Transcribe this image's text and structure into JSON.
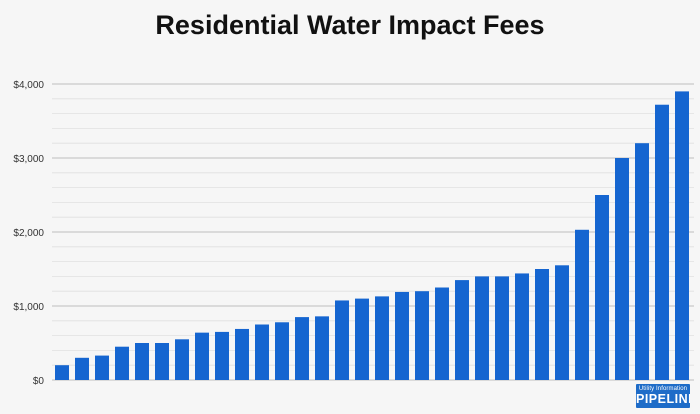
{
  "chart_data": {
    "type": "bar",
    "title": "Residential Water Impact Fees",
    "xlabel": "",
    "ylabel": "",
    "ylim": [
      0,
      4000
    ],
    "y_ticks": [
      "$0",
      "$1,000",
      "$2,000",
      "$3,000",
      "$4,000"
    ],
    "y_tick_values": [
      0,
      1000,
      2000,
      3000,
      4000
    ],
    "grid": true,
    "legend": "none",
    "bar_color": "#1565d0",
    "values": [
      200,
      300,
      330,
      450,
      500,
      500,
      550,
      640,
      650,
      690,
      750,
      780,
      850,
      860,
      1075,
      1100,
      1130,
      1190,
      1200,
      1250,
      1350,
      1400,
      1400,
      1440,
      1500,
      1550,
      2030,
      2500,
      3000,
      3200,
      3720,
      3900
    ]
  },
  "logo": {
    "top_text": "Utility Information",
    "bottom_text": "PIPELINE"
  }
}
